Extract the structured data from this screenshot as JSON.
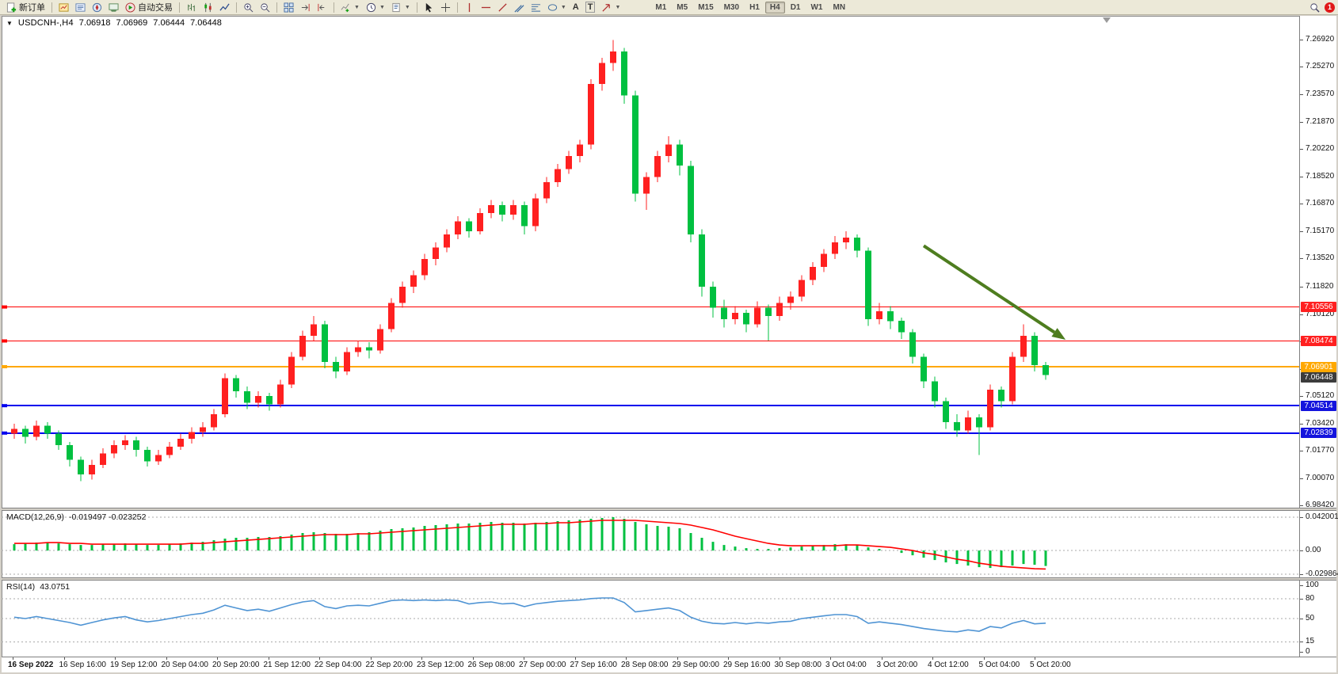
{
  "toolbar": {
    "new_order_label": "新订单",
    "autotrading_label": "自动交易",
    "text_tool_label": "A",
    "label_tool_label": "T",
    "timeframes": [
      "M1",
      "M5",
      "M15",
      "M30",
      "H1",
      "H4",
      "D1",
      "W1",
      "MN"
    ],
    "active_timeframe": "H4",
    "notification_count": "1",
    "icons": [
      "new-order-icon",
      "market-watch-icon",
      "data-window-icon",
      "navigator-icon",
      "terminal-icon",
      "autotrading-icon",
      "bar-chart-icon",
      "candlestick-icon",
      "line-chart-icon",
      "zoom-in-icon",
      "zoom-out-icon",
      "tile-windows-icon",
      "auto-scroll-icon",
      "chart-shift-icon",
      "indicators-icon",
      "periods-icon",
      "templates-icon",
      "cursor-icon",
      "crosshair-icon",
      "vertical-line-icon",
      "horizontal-line-icon",
      "trendline-icon",
      "channel-icon",
      "fibonacci-icon",
      "shapes-icon",
      "arrows-icon",
      "search-icon"
    ]
  },
  "chart": {
    "title": "USDCNH-,H4",
    "ohlc": {
      "open": "7.06918",
      "high": "7.06969",
      "low": "7.06444",
      "close": "7.06448"
    }
  },
  "chart_data": [
    {
      "type": "candlestick",
      "symbol": "USDCNH-",
      "timeframe": "H4",
      "up_color": "#ff2020",
      "down_color": "#00c040",
      "y_ticks": [
        "7.26920",
        "7.25270",
        "7.23570",
        "7.21870",
        "7.20220",
        "7.18520",
        "7.16870",
        "7.15170",
        "7.13520",
        "7.11820",
        "7.10120",
        "7.08470",
        "7.06770",
        "7.05120",
        "7.03420",
        "7.01770",
        "7.00070",
        "6.98420"
      ],
      "x_labels": [
        "16 Sep 2022",
        "16 Sep 16:00",
        "19 Sep 12:00",
        "20 Sep 04:00",
        "20 Sep 20:00",
        "21 Sep 12:00",
        "22 Sep 04:00",
        "22 Sep 20:00",
        "23 Sep 12:00",
        "26 Sep 08:00",
        "27 Sep 00:00",
        "27 Sep 16:00",
        "28 Sep 08:00",
        "29 Sep 00:00",
        "29 Sep 16:00",
        "30 Sep 08:00",
        "3 Oct 04:00",
        "3 Oct 20:00",
        "4 Oct 12:00",
        "5 Oct 04:00",
        "5 Oct 20:00"
      ],
      "hlines": [
        {
          "value": 7.10556,
          "color": "#ff0000",
          "width": 1
        },
        {
          "value": 7.08474,
          "color": "#ff0000",
          "width": 1
        },
        {
          "value": 7.06901,
          "color": "#ffa800",
          "width": 2
        },
        {
          "value": 7.04514,
          "color": "#0000ee",
          "width": 2
        },
        {
          "value": 7.02839,
          "color": "#0000ee",
          "width": 2
        }
      ],
      "price_tags": [
        {
          "value": "7.10556",
          "color": "#ff2020"
        },
        {
          "value": "7.08474",
          "color": "#ff2020"
        },
        {
          "value": "7.06901",
          "color": "#ffa800"
        },
        {
          "value": "7.06448",
          "color": "#3c3c3c"
        },
        {
          "value": "7.04514",
          "color": "#1414dd"
        },
        {
          "value": "7.02839",
          "color": "#1414dd"
        }
      ],
      "annotation_arrow": {
        "from_index": 82,
        "from_price": 7.143,
        "to_index": 94.8,
        "to_price": 7.0855,
        "color": "#4e7d1f"
      },
      "ohlc": [
        [
          7.028,
          7.034,
          7.025,
          7.031
        ],
        [
          7.031,
          7.033,
          7.022,
          7.026
        ],
        [
          7.026,
          7.036,
          7.024,
          7.033
        ],
        [
          7.033,
          7.035,
          7.025,
          7.028
        ],
        [
          7.028,
          7.03,
          7.018,
          7.021
        ],
        [
          7.021,
          7.023,
          7.008,
          7.012
        ],
        [
          7.012,
          7.014,
          6.999,
          7.003
        ],
        [
          7.003,
          7.012,
          7.0,
          7.009
        ],
        [
          7.009,
          7.019,
          7.007,
          7.016
        ],
        [
          7.016,
          7.024,
          7.013,
          7.021
        ],
        [
          7.021,
          7.027,
          7.018,
          7.024
        ],
        [
          7.024,
          7.026,
          7.014,
          7.018
        ],
        [
          7.018,
          7.02,
          7.008,
          7.011
        ],
        [
          7.011,
          7.018,
          7.009,
          7.015
        ],
        [
          7.015,
          7.023,
          7.013,
          7.02
        ],
        [
          7.02,
          7.028,
          7.018,
          7.025
        ],
        [
          7.025,
          7.032,
          7.022,
          7.029
        ],
        [
          7.029,
          7.035,
          7.026,
          7.032
        ],
        [
          7.032,
          7.043,
          7.03,
          7.04
        ],
        [
          7.04,
          7.065,
          7.038,
          7.062
        ],
        [
          7.062,
          7.064,
          7.05,
          7.054
        ],
        [
          7.054,
          7.057,
          7.043,
          7.047
        ],
        [
          7.047,
          7.054,
          7.044,
          7.051
        ],
        [
          7.051,
          7.053,
          7.042,
          7.046
        ],
        [
          7.046,
          7.061,
          7.044,
          7.058
        ],
        [
          7.058,
          7.078,
          7.056,
          7.075
        ],
        [
          7.075,
          7.091,
          7.073,
          7.088
        ],
        [
          7.088,
          7.1,
          7.085,
          7.095
        ],
        [
          7.095,
          7.097,
          7.068,
          7.072
        ],
        [
          7.072,
          7.075,
          7.062,
          7.066
        ],
        [
          7.066,
          7.081,
          7.064,
          7.078
        ],
        [
          7.078,
          7.085,
          7.075,
          7.081
        ],
        [
          7.081,
          7.084,
          7.074,
          7.079
        ],
        [
          7.079,
          7.095,
          7.077,
          7.092
        ],
        [
          7.092,
          7.111,
          7.09,
          7.108
        ],
        [
          7.108,
          7.121,
          7.105,
          7.118
        ],
        [
          7.118,
          7.128,
          7.114,
          7.125
        ],
        [
          7.125,
          7.138,
          7.122,
          7.135
        ],
        [
          7.135,
          7.145,
          7.131,
          7.142
        ],
        [
          7.142,
          7.153,
          7.139,
          7.15
        ],
        [
          7.15,
          7.161,
          7.147,
          7.158
        ],
        [
          7.158,
          7.16,
          7.148,
          7.152
        ],
        [
          7.152,
          7.166,
          7.15,
          7.163
        ],
        [
          7.163,
          7.171,
          7.16,
          7.168
        ],
        [
          7.168,
          7.17,
          7.158,
          7.162
        ],
        [
          7.162,
          7.171,
          7.159,
          7.168
        ],
        [
          7.168,
          7.17,
          7.15,
          7.155
        ],
        [
          7.155,
          7.175,
          7.152,
          7.172
        ],
        [
          7.172,
          7.185,
          7.169,
          7.182
        ],
        [
          7.182,
          7.193,
          7.179,
          7.19
        ],
        [
          7.19,
          7.201,
          7.187,
          7.198
        ],
        [
          7.198,
          7.208,
          7.194,
          7.205
        ],
        [
          7.205,
          7.245,
          7.202,
          7.242
        ],
        [
          7.242,
          7.258,
          7.238,
          7.255
        ],
        [
          7.255,
          7.269,
          7.25,
          7.262
        ],
        [
          7.262,
          7.264,
          7.23,
          7.235
        ],
        [
          7.235,
          7.238,
          7.17,
          7.175
        ],
        [
          7.175,
          7.188,
          7.165,
          7.185
        ],
        [
          7.185,
          7.201,
          7.182,
          7.198
        ],
        [
          7.198,
          7.21,
          7.194,
          7.205
        ],
        [
          7.205,
          7.208,
          7.186,
          7.192
        ],
        [
          7.192,
          7.195,
          7.145,
          7.15
        ],
        [
          7.15,
          7.153,
          7.112,
          7.118
        ],
        [
          7.118,
          7.121,
          7.099,
          7.105
        ],
        [
          7.105,
          7.11,
          7.093,
          7.098
        ],
        [
          7.098,
          7.106,
          7.095,
          7.102
        ],
        [
          7.102,
          7.104,
          7.09,
          7.095
        ],
        [
          7.095,
          7.109,
          7.093,
          7.105
        ],
        [
          7.105,
          7.107,
          7.085,
          7.1
        ],
        [
          7.1,
          7.112,
          7.097,
          7.108
        ],
        [
          7.108,
          7.115,
          7.104,
          7.112
        ],
        [
          7.112,
          7.125,
          7.109,
          7.122
        ],
        [
          7.122,
          7.133,
          7.119,
          7.13
        ],
        [
          7.13,
          7.141,
          7.127,
          7.138
        ],
        [
          7.138,
          7.149,
          7.135,
          7.145
        ],
        [
          7.145,
          7.152,
          7.141,
          7.148
        ],
        [
          7.148,
          7.15,
          7.136,
          7.14
        ],
        [
          7.14,
          7.142,
          7.094,
          7.098
        ],
        [
          7.098,
          7.108,
          7.095,
          7.103
        ],
        [
          7.103,
          7.106,
          7.092,
          7.097
        ],
        [
          7.097,
          7.099,
          7.086,
          7.09
        ],
        [
          7.09,
          7.092,
          7.071,
          7.075
        ],
        [
          7.075,
          7.077,
          7.056,
          7.06
        ],
        [
          7.06,
          7.063,
          7.044,
          7.048
        ],
        [
          7.048,
          7.05,
          7.031,
          7.035
        ],
        [
          7.035,
          7.04,
          7.026,
          7.03
        ],
        [
          7.03,
          7.042,
          7.028,
          7.038
        ],
        [
          7.038,
          7.04,
          7.015,
          7.032
        ],
        [
          7.032,
          7.058,
          7.03,
          7.055
        ],
        [
          7.055,
          7.057,
          7.044,
          7.048
        ],
        [
          7.048,
          7.078,
          7.046,
          7.075
        ],
        [
          7.075,
          7.095,
          7.072,
          7.088
        ],
        [
          7.088,
          7.09,
          7.066,
          7.07
        ],
        [
          7.07,
          7.072,
          7.061,
          7.064
        ]
      ]
    },
    {
      "type": "bar",
      "name": "MACD(12,26,9)",
      "values_label": "-0.019497 -0.023252",
      "histogram_color": "#00c040",
      "signal_color": "#ff0000",
      "y_ticks": [
        "0.042001",
        "0.00",
        "-0.029864"
      ],
      "histogram": [
        0.008,
        0.009,
        0.01,
        0.01,
        0.009,
        0.008,
        0.007,
        0.007,
        0.008,
        0.008,
        0.009,
        0.008,
        0.007,
        0.007,
        0.008,
        0.009,
        0.01,
        0.011,
        0.013,
        0.015,
        0.016,
        0.016,
        0.017,
        0.017,
        0.018,
        0.02,
        0.022,
        0.023,
        0.022,
        0.021,
        0.021,
        0.022,
        0.023,
        0.025,
        0.027,
        0.028,
        0.029,
        0.031,
        0.032,
        0.033,
        0.034,
        0.034,
        0.035,
        0.036,
        0.035,
        0.035,
        0.034,
        0.035,
        0.036,
        0.037,
        0.038,
        0.039,
        0.04,
        0.041,
        0.042,
        0.04,
        0.036,
        0.033,
        0.031,
        0.03,
        0.028,
        0.022,
        0.016,
        0.011,
        0.007,
        0.005,
        0.003,
        0.002,
        0.002,
        0.003,
        0.004,
        0.005,
        0.006,
        0.007,
        0.008,
        0.008,
        0.007,
        0.004,
        0.002,
        0.0,
        -0.003,
        -0.006,
        -0.009,
        -0.012,
        -0.015,
        -0.017,
        -0.019,
        -0.021,
        -0.022,
        -0.021,
        -0.019,
        -0.017,
        -0.018,
        -0.0195
      ],
      "signal": [
        0.009,
        0.009,
        0.009,
        0.01,
        0.01,
        0.009,
        0.009,
        0.008,
        0.008,
        0.008,
        0.008,
        0.008,
        0.008,
        0.008,
        0.008,
        0.008,
        0.009,
        0.009,
        0.01,
        0.011,
        0.012,
        0.013,
        0.014,
        0.015,
        0.016,
        0.017,
        0.018,
        0.019,
        0.02,
        0.02,
        0.02,
        0.021,
        0.021,
        0.022,
        0.023,
        0.024,
        0.025,
        0.026,
        0.027,
        0.028,
        0.029,
        0.03,
        0.031,
        0.032,
        0.033,
        0.033,
        0.033,
        0.034,
        0.034,
        0.035,
        0.035,
        0.036,
        0.037,
        0.038,
        0.038,
        0.038,
        0.038,
        0.037,
        0.036,
        0.035,
        0.034,
        0.032,
        0.029,
        0.026,
        0.022,
        0.018,
        0.015,
        0.012,
        0.009,
        0.007,
        0.006,
        0.006,
        0.006,
        0.006,
        0.006,
        0.007,
        0.007,
        0.006,
        0.005,
        0.004,
        0.002,
        0.0,
        -0.003,
        -0.005,
        -0.008,
        -0.011,
        -0.013,
        -0.016,
        -0.018,
        -0.02,
        -0.021,
        -0.022,
        -0.023,
        -0.0233
      ]
    },
    {
      "type": "line",
      "name": "RSI(14)",
      "value_label": "43.0751",
      "line_color": "#4f94d4",
      "levels": [
        80,
        50,
        15
      ],
      "y_ticks": [
        "100",
        "80",
        "50",
        "15",
        "0"
      ],
      "values": [
        52,
        50,
        53,
        50,
        47,
        44,
        40,
        44,
        48,
        51,
        53,
        48,
        45,
        47,
        50,
        53,
        56,
        58,
        63,
        70,
        66,
        62,
        64,
        61,
        66,
        71,
        75,
        77,
        68,
        65,
        69,
        70,
        69,
        73,
        77,
        78,
        77,
        78,
        77,
        78,
        77,
        72,
        74,
        75,
        72,
        73,
        68,
        72,
        74,
        76,
        77,
        78,
        80,
        81,
        81,
        74,
        60,
        62,
        64,
        66,
        62,
        52,
        46,
        43,
        42,
        44,
        42,
        44,
        43,
        45,
        46,
        50,
        52,
        54,
        56,
        56,
        53,
        43,
        45,
        43,
        41,
        38,
        35,
        33,
        31,
        30,
        33,
        31,
        38,
        36,
        43,
        47,
        42,
        43.0751
      ]
    }
  ]
}
